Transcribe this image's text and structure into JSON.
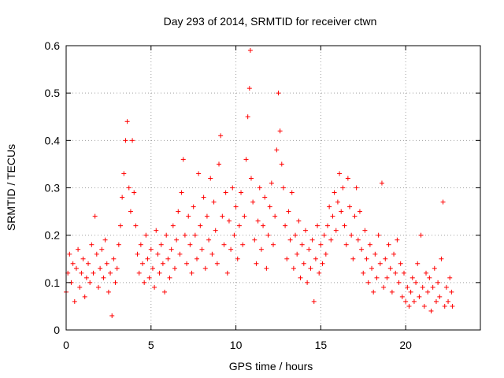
{
  "chart_data": {
    "type": "scatter",
    "title": "Day 293 of 2014, SRMTID for receiver ctwn",
    "xlabel": "GPS time / hours",
    "ylabel": "SRMTID / TECUs",
    "xlim": [
      0,
      24.4
    ],
    "ylim": [
      0,
      0.6
    ],
    "xticks": [
      0,
      5,
      10,
      15,
      20
    ],
    "yticks": [
      0,
      0.1,
      0.2,
      0.3,
      0.4,
      0.5,
      0.6
    ],
    "xtick_labels": [
      "0",
      "5",
      "10",
      "15",
      "20"
    ],
    "ytick_labels": [
      "0",
      "0.1",
      "0.2",
      "0.3",
      "0.4",
      "0.5",
      "0.6"
    ],
    "grid": true,
    "marker": "+",
    "series": [
      {
        "name": "SRMTID",
        "color": "#ff0000",
        "points": [
          [
            0.0,
            0.08
          ],
          [
            0.1,
            0.12
          ],
          [
            0.2,
            0.16
          ],
          [
            0.3,
            0.1
          ],
          [
            0.4,
            0.14
          ],
          [
            0.5,
            0.06
          ],
          [
            0.6,
            0.13
          ],
          [
            0.7,
            0.17
          ],
          [
            0.8,
            0.09
          ],
          [
            0.9,
            0.12
          ],
          [
            1.0,
            0.15
          ],
          [
            1.1,
            0.07
          ],
          [
            1.2,
            0.11
          ],
          [
            1.3,
            0.14
          ],
          [
            1.4,
            0.1
          ],
          [
            1.5,
            0.18
          ],
          [
            1.6,
            0.12
          ],
          [
            1.7,
            0.24
          ],
          [
            1.8,
            0.16
          ],
          [
            1.9,
            0.09
          ],
          [
            2.0,
            0.13
          ],
          [
            2.1,
            0.17
          ],
          [
            2.2,
            0.11
          ],
          [
            2.3,
            0.19
          ],
          [
            2.4,
            0.14
          ],
          [
            2.5,
            0.08
          ],
          [
            2.6,
            0.12
          ],
          [
            2.7,
            0.03
          ],
          [
            2.8,
            0.15
          ],
          [
            2.9,
            0.1
          ],
          [
            3.0,
            0.13
          ],
          [
            3.1,
            0.18
          ],
          [
            3.2,
            0.22
          ],
          [
            3.3,
            0.28
          ],
          [
            3.4,
            0.33
          ],
          [
            3.5,
            0.4
          ],
          [
            3.6,
            0.44
          ],
          [
            3.7,
            0.3
          ],
          [
            3.8,
            0.25
          ],
          [
            3.9,
            0.4
          ],
          [
            4.0,
            0.29
          ],
          [
            4.1,
            0.22
          ],
          [
            4.2,
            0.16
          ],
          [
            4.3,
            0.12
          ],
          [
            4.4,
            0.18
          ],
          [
            4.5,
            0.14
          ],
          [
            4.6,
            0.1
          ],
          [
            4.7,
            0.2
          ],
          [
            4.8,
            0.15
          ],
          [
            4.9,
            0.11
          ],
          [
            5.0,
            0.17
          ],
          [
            5.1,
            0.13
          ],
          [
            5.2,
            0.09
          ],
          [
            5.3,
            0.21
          ],
          [
            5.4,
            0.16
          ],
          [
            5.5,
            0.12
          ],
          [
            5.6,
            0.18
          ],
          [
            5.7,
            0.14
          ],
          [
            5.8,
            0.08
          ],
          [
            5.9,
            0.2
          ],
          [
            6.0,
            0.15
          ],
          [
            6.1,
            0.11
          ],
          [
            6.2,
            0.17
          ],
          [
            6.3,
            0.22
          ],
          [
            6.4,
            0.13
          ],
          [
            6.5,
            0.19
          ],
          [
            6.6,
            0.25
          ],
          [
            6.7,
            0.16
          ],
          [
            6.8,
            0.29
          ],
          [
            6.9,
            0.36
          ],
          [
            7.0,
            0.2
          ],
          [
            7.1,
            0.14
          ],
          [
            7.2,
            0.24
          ],
          [
            7.3,
            0.18
          ],
          [
            7.4,
            0.12
          ],
          [
            7.5,
            0.26
          ],
          [
            7.6,
            0.2
          ],
          [
            7.7,
            0.15
          ],
          [
            7.8,
            0.33
          ],
          [
            7.9,
            0.22
          ],
          [
            8.0,
            0.17
          ],
          [
            8.1,
            0.28
          ],
          [
            8.2,
            0.13
          ],
          [
            8.3,
            0.24
          ],
          [
            8.4,
            0.19
          ],
          [
            8.5,
            0.32
          ],
          [
            8.6,
            0.16
          ],
          [
            8.7,
            0.27
          ],
          [
            8.8,
            0.21
          ],
          [
            8.9,
            0.14
          ],
          [
            9.0,
            0.35
          ],
          [
            9.1,
            0.41
          ],
          [
            9.2,
            0.24
          ],
          [
            9.3,
            0.18
          ],
          [
            9.4,
            0.29
          ],
          [
            9.5,
            0.12
          ],
          [
            9.6,
            0.23
          ],
          [
            9.7,
            0.17
          ],
          [
            9.8,
            0.3
          ],
          [
            9.9,
            0.2
          ],
          [
            10.0,
            0.26
          ],
          [
            10.1,
            0.15
          ],
          [
            10.2,
            0.22
          ],
          [
            10.3,
            0.29
          ],
          [
            10.4,
            0.18
          ],
          [
            10.5,
            0.24
          ],
          [
            10.6,
            0.36
          ],
          [
            10.7,
            0.45
          ],
          [
            10.8,
            0.51
          ],
          [
            10.85,
            0.59
          ],
          [
            10.9,
            0.32
          ],
          [
            11.0,
            0.27
          ],
          [
            11.1,
            0.19
          ],
          [
            11.2,
            0.14
          ],
          [
            11.3,
            0.23
          ],
          [
            11.4,
            0.3
          ],
          [
            11.5,
            0.17
          ],
          [
            11.6,
            0.22
          ],
          [
            11.7,
            0.28
          ],
          [
            11.8,
            0.13
          ],
          [
            11.9,
            0.2
          ],
          [
            12.0,
            0.26
          ],
          [
            12.1,
            0.31
          ],
          [
            12.2,
            0.18
          ],
          [
            12.3,
            0.24
          ],
          [
            12.4,
            0.38
          ],
          [
            12.5,
            0.5
          ],
          [
            12.6,
            0.42
          ],
          [
            12.7,
            0.35
          ],
          [
            12.8,
            0.3
          ],
          [
            12.9,
            0.22
          ],
          [
            13.0,
            0.15
          ],
          [
            13.1,
            0.25
          ],
          [
            13.2,
            0.19
          ],
          [
            13.3,
            0.29
          ],
          [
            13.4,
            0.13
          ],
          [
            13.5,
            0.2
          ],
          [
            13.6,
            0.16
          ],
          [
            13.7,
            0.23
          ],
          [
            13.8,
            0.11
          ],
          [
            13.9,
            0.18
          ],
          [
            14.0,
            0.14
          ],
          [
            14.1,
            0.21
          ],
          [
            14.2,
            0.1
          ],
          [
            14.3,
            0.17
          ],
          [
            14.4,
            0.13
          ],
          [
            14.5,
            0.19
          ],
          [
            14.6,
            0.06
          ],
          [
            14.7,
            0.15
          ],
          [
            14.8,
            0.22
          ],
          [
            14.9,
            0.12
          ],
          [
            15.0,
            0.18
          ],
          [
            15.1,
            0.14
          ],
          [
            15.2,
            0.2
          ],
          [
            15.3,
            0.16
          ],
          [
            15.4,
            0.22
          ],
          [
            15.5,
            0.26
          ],
          [
            15.6,
            0.19
          ],
          [
            15.7,
            0.24
          ],
          [
            15.8,
            0.29
          ],
          [
            15.9,
            0.21
          ],
          [
            16.0,
            0.27
          ],
          [
            16.1,
            0.33
          ],
          [
            16.2,
            0.25
          ],
          [
            16.3,
            0.3
          ],
          [
            16.4,
            0.22
          ],
          [
            16.5,
            0.18
          ],
          [
            16.6,
            0.32
          ],
          [
            16.7,
            0.26
          ],
          [
            16.8,
            0.2
          ],
          [
            16.9,
            0.15
          ],
          [
            17.0,
            0.24
          ],
          [
            17.1,
            0.3
          ],
          [
            17.2,
            0.19
          ],
          [
            17.3,
            0.25
          ],
          [
            17.4,
            0.17
          ],
          [
            17.5,
            0.12
          ],
          [
            17.6,
            0.21
          ],
          [
            17.7,
            0.15
          ],
          [
            17.8,
            0.1
          ],
          [
            17.9,
            0.18
          ],
          [
            18.0,
            0.13
          ],
          [
            18.1,
            0.08
          ],
          [
            18.2,
            0.16
          ],
          [
            18.3,
            0.11
          ],
          [
            18.4,
            0.2
          ],
          [
            18.5,
            0.14
          ],
          [
            18.6,
            0.31
          ],
          [
            18.7,
            0.09
          ],
          [
            18.8,
            0.15
          ],
          [
            18.9,
            0.11
          ],
          [
            19.0,
            0.18
          ],
          [
            19.1,
            0.13
          ],
          [
            19.2,
            0.08
          ],
          [
            19.3,
            0.16
          ],
          [
            19.4,
            0.12
          ],
          [
            19.5,
            0.19
          ],
          [
            19.6,
            0.1
          ],
          [
            19.7,
            0.14
          ],
          [
            19.8,
            0.07
          ],
          [
            19.9,
            0.12
          ],
          [
            20.0,
            0.06
          ],
          [
            20.1,
            0.09
          ],
          [
            20.2,
            0.05
          ],
          [
            20.3,
            0.08
          ],
          [
            20.4,
            0.11
          ],
          [
            20.5,
            0.06
          ],
          [
            20.6,
            0.1
          ],
          [
            20.7,
            0.14
          ],
          [
            20.8,
            0.07
          ],
          [
            20.9,
            0.2
          ],
          [
            21.0,
            0.09
          ],
          [
            21.1,
            0.05
          ],
          [
            21.2,
            0.12
          ],
          [
            21.3,
            0.08
          ],
          [
            21.4,
            0.11
          ],
          [
            21.5,
            0.04
          ],
          [
            21.6,
            0.09
          ],
          [
            21.7,
            0.13
          ],
          [
            21.8,
            0.06
          ],
          [
            21.9,
            0.1
          ],
          [
            22.0,
            0.07
          ],
          [
            22.1,
            0.15
          ],
          [
            22.2,
            0.27
          ],
          [
            22.3,
            0.05
          ],
          [
            22.4,
            0.09
          ],
          [
            22.5,
            0.06
          ],
          [
            22.6,
            0.11
          ],
          [
            22.7,
            0.08
          ],
          [
            22.75,
            0.05
          ]
        ]
      }
    ]
  }
}
